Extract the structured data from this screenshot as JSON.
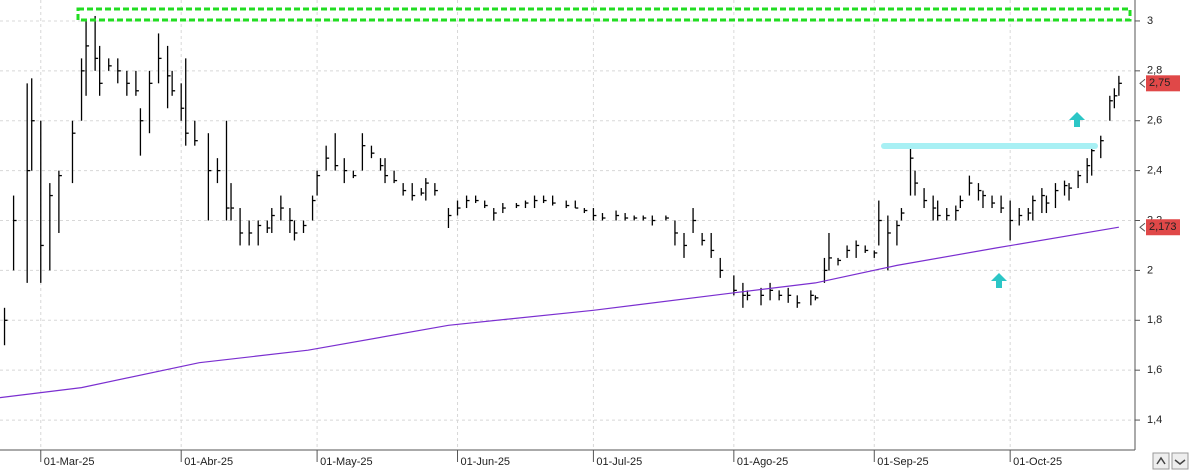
{
  "chart_data": {
    "type": "ohlc",
    "ylim": [
      1.28,
      3.084
    ],
    "yticks": [
      {
        "value": 1.4,
        "label": "1,4"
      },
      {
        "value": 1.6,
        "label": "1,6"
      },
      {
        "value": 1.8,
        "label": "1,8"
      },
      2,
      {
        "value": 2.2,
        "label": "2,2"
      },
      {
        "value": 2.4,
        "label": "2,4"
      },
      {
        "value": 2.6,
        "label": "2,6"
      },
      {
        "value": 2.8,
        "label": "2,8"
      },
      3
    ],
    "xlim": [
      "2025-02-20",
      "2025-10-29"
    ],
    "xticks": [
      {
        "value": "2025-03-01",
        "label": "01-Mar-25"
      },
      {
        "value": "2025-04-01",
        "label": "01-Abr-25"
      },
      {
        "value": "2025-05-01",
        "label": "01-May-25"
      },
      {
        "value": "2025-06-01",
        "label": "01-Jun-25"
      },
      {
        "value": "2025-07-01",
        "label": "01-Jul-25"
      },
      {
        "value": "2025-08-01",
        "label": "01-Ago-25"
      },
      {
        "value": "2025-09-01",
        "label": "01-Sep-25"
      },
      {
        "value": "2025-10-01",
        "label": "01-Oct-25"
      }
    ],
    "grid": true,
    "ohlc": {
      "color": "#000000",
      "x": [
        "2025-02-21",
        "2025-02-23",
        "2025-02-26",
        "2025-02-27",
        "2025-03-01",
        "2025-03-03",
        "2025-03-05",
        "2025-03-08",
        "2025-03-10",
        "2025-03-11",
        "2025-03-13",
        "2025-03-14",
        "2025-03-16",
        "2025-03-18",
        "2025-03-20",
        "2025-03-22",
        "2025-03-23",
        "2025-03-25",
        "2025-03-27",
        "2025-03-29",
        "2025-03-30",
        "2025-04-01",
        "2025-04-02",
        "2025-04-04",
        "2025-04-07",
        "2025-04-09",
        "2025-04-11",
        "2025-04-12",
        "2025-04-14",
        "2025-04-16",
        "2025-04-18",
        "2025-04-20",
        "2025-04-21",
        "2025-04-23",
        "2025-04-25",
        "2025-04-26",
        "2025-04-28",
        "2025-04-30",
        "2025-05-01",
        "2025-05-03",
        "2025-05-05",
        "2025-05-07",
        "2025-05-09",
        "2025-05-11",
        "2025-05-13",
        "2025-05-15",
        "2025-05-16",
        "2025-05-18",
        "2025-05-20",
        "2025-05-22",
        "2025-05-24",
        "2025-05-25",
        "2025-05-27",
        "2025-05-30",
        "2025-06-01",
        "2025-06-03",
        "2025-06-05",
        "2025-06-07",
        "2025-06-09",
        "2025-06-11",
        "2025-06-14",
        "2025-06-16",
        "2025-06-18",
        "2025-06-20",
        "2025-06-22",
        "2025-06-25",
        "2025-06-27",
        "2025-06-29",
        "2025-07-01",
        "2025-07-03",
        "2025-07-06",
        "2025-07-08",
        "2025-07-10",
        "2025-07-12",
        "2025-07-14",
        "2025-07-17",
        "2025-07-19",
        "2025-07-21",
        "2025-07-23",
        "2025-07-25",
        "2025-07-27",
        "2025-07-29",
        "2025-08-01",
        "2025-08-03",
        "2025-08-04",
        "2025-08-07",
        "2025-08-09",
        "2025-08-11",
        "2025-08-13",
        "2025-08-15",
        "2025-08-18",
        "2025-08-19",
        "2025-08-21",
        "2025-08-22",
        "2025-08-24",
        "2025-08-26",
        "2025-08-28",
        "2025-08-30",
        "2025-09-01",
        "2025-09-02",
        "2025-09-04",
        "2025-09-06",
        "2025-09-07",
        "2025-09-09",
        "2025-09-10",
        "2025-09-12",
        "2025-09-14",
        "2025-09-15",
        "2025-09-17",
        "2025-09-19",
        "2025-09-20",
        "2025-09-22",
        "2025-09-24",
        "2025-09-25",
        "2025-09-27",
        "2025-09-29",
        "2025-10-01",
        "2025-10-03",
        "2025-10-05",
        "2025-10-06",
        "2025-10-08",
        "2025-10-09",
        "2025-10-11",
        "2025-10-13",
        "2025-10-14",
        "2025-10-16",
        "2025-10-18",
        "2025-10-19",
        "2025-10-21",
        "2025-10-23",
        "2025-10-24",
        "2025-10-25"
      ],
      "high": [
        1.85,
        2.3,
        2.75,
        2.77,
        2.6,
        2.35,
        2.4,
        2.6,
        2.85,
        3.0,
        3.02,
        2.9,
        2.85,
        2.85,
        2.8,
        2.8,
        2.65,
        2.8,
        2.95,
        2.9,
        2.8,
        2.75,
        2.85,
        2.6,
        2.55,
        2.45,
        2.6,
        2.35,
        2.25,
        2.2,
        2.2,
        2.2,
        2.25,
        2.3,
        2.25,
        2.2,
        2.2,
        2.3,
        2.4,
        2.5,
        2.55,
        2.45,
        2.4,
        2.55,
        2.5,
        2.45,
        2.45,
        2.4,
        2.35,
        2.35,
        2.33,
        2.37,
        2.35,
        2.25,
        2.28,
        2.3,
        2.3,
        2.28,
        2.25,
        2.27,
        2.27,
        2.28,
        2.3,
        2.3,
        2.3,
        2.28,
        2.28,
        2.25,
        2.25,
        2.23,
        2.24,
        2.23,
        2.22,
        2.22,
        2.22,
        2.22,
        2.2,
        2.15,
        2.25,
        2.15,
        2.15,
        2.05,
        1.98,
        1.95,
        1.92,
        1.93,
        1.95,
        1.92,
        1.93,
        1.9,
        1.92,
        1.9,
        2.05,
        2.15,
        2.05,
        2.1,
        2.12,
        2.1,
        2.08,
        2.28,
        2.22,
        2.2,
        2.25,
        2.5,
        2.4,
        2.33,
        2.3,
        2.28,
        2.25,
        2.26,
        2.3,
        2.38,
        2.35,
        2.32,
        2.3,
        2.3,
        2.28,
        2.25,
        2.25,
        2.3,
        2.33,
        2.3,
        2.35,
        2.36,
        2.35,
        2.4,
        2.45,
        2.5,
        2.54,
        2.7,
        2.73,
        2.78
      ],
      "low": [
        1.7,
        2.0,
        1.95,
        2.4,
        1.95,
        2.0,
        2.15,
        2.35,
        2.6,
        2.7,
        2.8,
        2.7,
        2.8,
        2.75,
        2.7,
        2.7,
        2.46,
        2.55,
        2.75,
        2.65,
        2.7,
        2.6,
        2.5,
        2.5,
        2.2,
        2.35,
        2.2,
        2.2,
        2.1,
        2.1,
        2.1,
        2.15,
        2.15,
        2.2,
        2.15,
        2.12,
        2.15,
        2.2,
        2.3,
        2.4,
        2.4,
        2.35,
        2.37,
        2.4,
        2.45,
        2.4,
        2.35,
        2.35,
        2.3,
        2.28,
        2.3,
        2.28,
        2.3,
        2.17,
        2.22,
        2.25,
        2.27,
        2.25,
        2.2,
        2.23,
        2.25,
        2.25,
        2.25,
        2.27,
        2.26,
        2.25,
        2.25,
        2.23,
        2.2,
        2.2,
        2.2,
        2.2,
        2.2,
        2.2,
        2.18,
        2.2,
        2.1,
        2.05,
        2.15,
        2.1,
        2.05,
        1.97,
        1.9,
        1.85,
        1.88,
        1.86,
        1.88,
        1.88,
        1.87,
        1.85,
        1.86,
        1.88,
        1.95,
        2.0,
        2.02,
        2.05,
        2.05,
        2.07,
        2.05,
        2.1,
        2.0,
        2.1,
        2.2,
        2.3,
        2.3,
        2.25,
        2.2,
        2.2,
        2.2,
        2.2,
        2.25,
        2.3,
        2.28,
        2.25,
        2.25,
        2.23,
        2.12,
        2.18,
        2.2,
        2.2,
        2.23,
        2.23,
        2.25,
        2.3,
        2.28,
        2.33,
        2.35,
        2.38,
        2.45,
        2.6,
        2.65,
        2.7
      ],
      "close": [
        1.8,
        2.2,
        2.4,
        2.6,
        2.1,
        2.3,
        2.38,
        2.55,
        2.8,
        2.9,
        2.85,
        2.75,
        2.82,
        2.8,
        2.75,
        2.72,
        2.6,
        2.75,
        2.85,
        2.78,
        2.72,
        2.65,
        2.55,
        2.52,
        2.4,
        2.4,
        2.25,
        2.25,
        2.15,
        2.15,
        2.18,
        2.17,
        2.22,
        2.25,
        2.2,
        2.15,
        2.18,
        2.28,
        2.38,
        2.45,
        2.42,
        2.4,
        2.38,
        2.5,
        2.47,
        2.42,
        2.38,
        2.36,
        2.32,
        2.3,
        2.31,
        2.35,
        2.32,
        2.22,
        2.25,
        2.28,
        2.28,
        2.26,
        2.23,
        2.25,
        2.26,
        2.27,
        2.28,
        2.28,
        2.27,
        2.26,
        2.25,
        2.24,
        2.22,
        2.21,
        2.22,
        2.21,
        2.21,
        2.21,
        2.2,
        2.21,
        2.15,
        2.1,
        2.2,
        2.12,
        2.08,
        2.0,
        1.92,
        1.9,
        1.9,
        1.9,
        1.92,
        1.9,
        1.9,
        1.87,
        1.9,
        1.89,
        2.0,
        2.05,
        2.04,
        2.08,
        2.1,
        2.08,
        2.07,
        2.2,
        2.15,
        2.18,
        2.23,
        2.45,
        2.35,
        2.28,
        2.25,
        2.22,
        2.22,
        2.24,
        2.28,
        2.35,
        2.32,
        2.3,
        2.27,
        2.25,
        2.2,
        2.22,
        2.23,
        2.28,
        2.3,
        2.27,
        2.32,
        2.34,
        2.33,
        2.38,
        2.42,
        2.48,
        2.52,
        2.68,
        2.7,
        2.75
      ]
    },
    "moving_average": {
      "color": "#7b2fd0",
      "x": [
        "2025-02-20",
        "2025-03-10",
        "2025-04-05",
        "2025-04-29",
        "2025-05-30",
        "2025-07-01",
        "2025-08-01",
        "2025-08-19",
        "2025-09-06",
        "2025-09-28",
        "2025-10-25"
      ],
      "values": [
        1.49,
        1.53,
        1.63,
        1.68,
        1.78,
        1.84,
        1.91,
        1.95,
        2.02,
        2.09,
        2.173
      ]
    },
    "markers": [
      {
        "value": 2.75,
        "label": "2,75"
      },
      {
        "value": 2.173,
        "label": "2,173"
      }
    ]
  }
}
